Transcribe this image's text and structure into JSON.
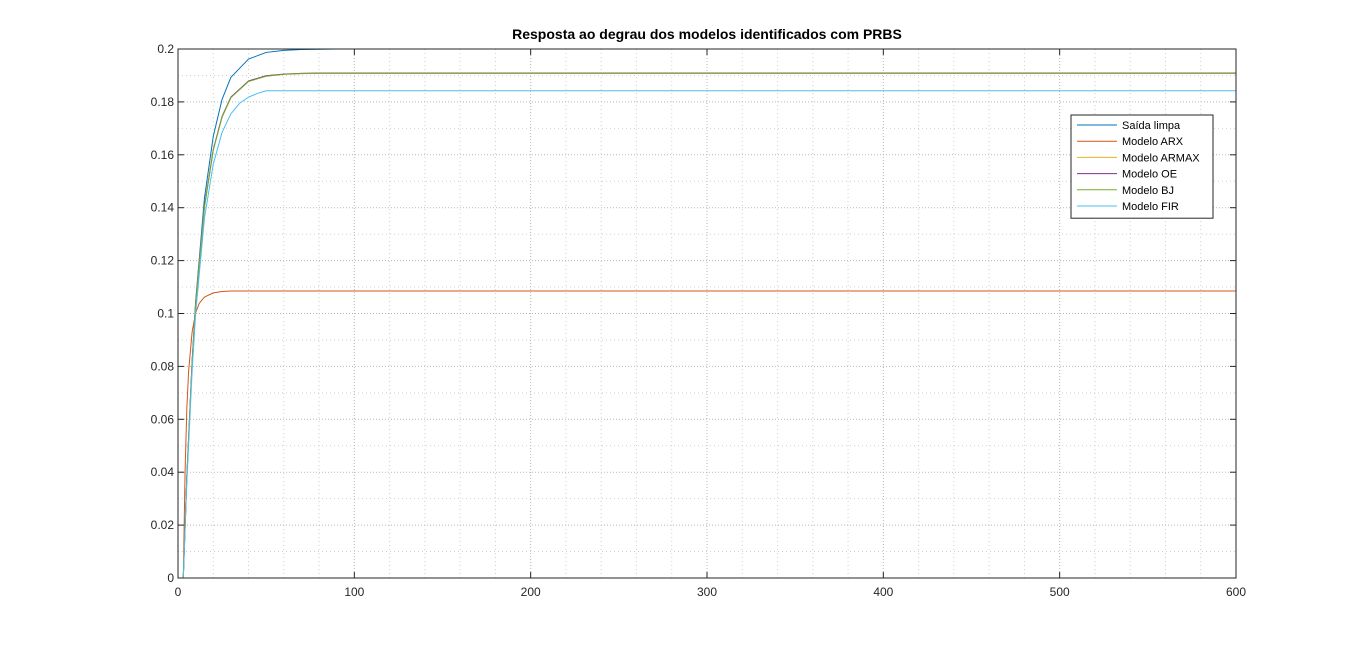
{
  "chart_data": {
    "type": "line",
    "title": "Resposta ao degrau dos modelos identificados com PRBS",
    "xlabel": "",
    "ylabel": "",
    "xlim": [
      0,
      600
    ],
    "ylim": [
      0,
      0.2
    ],
    "x_ticks": [
      0,
      100,
      200,
      300,
      400,
      500,
      600
    ],
    "x_tick_labels": [
      "0",
      "100",
      "200",
      "300",
      "400",
      "500",
      "600"
    ],
    "y_ticks": [
      0,
      0.02,
      0.04,
      0.06,
      0.08,
      0.1,
      0.12,
      0.14,
      0.16,
      0.18,
      0.2
    ],
    "y_tick_labels": [
      "0",
      "0.02",
      "0.04",
      "0.06",
      "0.08",
      "0.1",
      "0.12",
      "0.14",
      "0.16",
      "0.18",
      "0.2"
    ],
    "grid": true,
    "minor_grid": true,
    "legend_position": "top-right",
    "series": [
      {
        "name": "Saída limpa",
        "color": "#0072BD",
        "x": [
          0,
          3,
          5,
          8,
          10,
          15,
          20,
          25,
          30,
          40,
          50,
          60,
          70,
          80,
          90,
          100,
          600
        ],
        "y": [
          0,
          0,
          0.0385,
          0.082,
          0.1045,
          0.1436,
          0.167,
          0.181,
          0.1893,
          0.1962,
          0.1987,
          0.1995,
          0.1998,
          0.1999,
          0.2,
          0.2,
          0.2
        ]
      },
      {
        "name": "Modelo ARX",
        "color": "#D95319",
        "x": [
          0,
          3,
          4,
          5,
          6,
          8,
          10,
          12,
          15,
          20,
          25,
          30,
          35,
          40,
          600
        ],
        "y": [
          0,
          0,
          0.04,
          0.064,
          0.078,
          0.093,
          0.1002,
          0.1038,
          0.1062,
          0.1078,
          0.1083,
          0.1085,
          0.1085,
          0.1085,
          0.1085
        ]
      },
      {
        "name": "Modelo ARMAX",
        "color": "#EDB120",
        "x": [
          0,
          3,
          5,
          8,
          10,
          15,
          20,
          25,
          30,
          40,
          50,
          60,
          70,
          80,
          600
        ],
        "y": [
          0,
          0,
          0.038,
          0.0815,
          0.104,
          0.1405,
          0.162,
          0.1745,
          0.1818,
          0.1879,
          0.1899,
          0.1905,
          0.1908,
          0.1909,
          0.1909
        ]
      },
      {
        "name": "Modelo OE",
        "color": "#7E2F8E",
        "x": [
          0,
          3,
          5,
          8,
          10,
          15,
          20,
          25,
          30,
          40,
          50,
          60,
          70,
          80,
          600
        ],
        "y": [
          0,
          0,
          0.038,
          0.0815,
          0.104,
          0.1405,
          0.162,
          0.1745,
          0.1818,
          0.1879,
          0.1899,
          0.1905,
          0.1908,
          0.1909,
          0.1909
        ]
      },
      {
        "name": "Modelo BJ",
        "color": "#77AC30",
        "x": [
          0,
          3,
          5,
          8,
          10,
          15,
          20,
          25,
          30,
          40,
          50,
          60,
          70,
          80,
          600
        ],
        "y": [
          0,
          0,
          0.0378,
          0.081,
          0.1035,
          0.14,
          0.1617,
          0.1742,
          0.1816,
          0.1877,
          0.1897,
          0.1904,
          0.1907,
          0.1908,
          0.1908
        ]
      },
      {
        "name": "Modelo FIR",
        "color": "#4DBEEE",
        "x": [
          0,
          3,
          5,
          8,
          10,
          15,
          20,
          25,
          30,
          35,
          40,
          45,
          50,
          600
        ],
        "y": [
          0,
          0,
          0.036,
          0.078,
          0.1,
          0.136,
          0.1565,
          0.1685,
          0.1755,
          0.1795,
          0.1818,
          0.1832,
          0.1842,
          0.1842
        ]
      }
    ]
  }
}
